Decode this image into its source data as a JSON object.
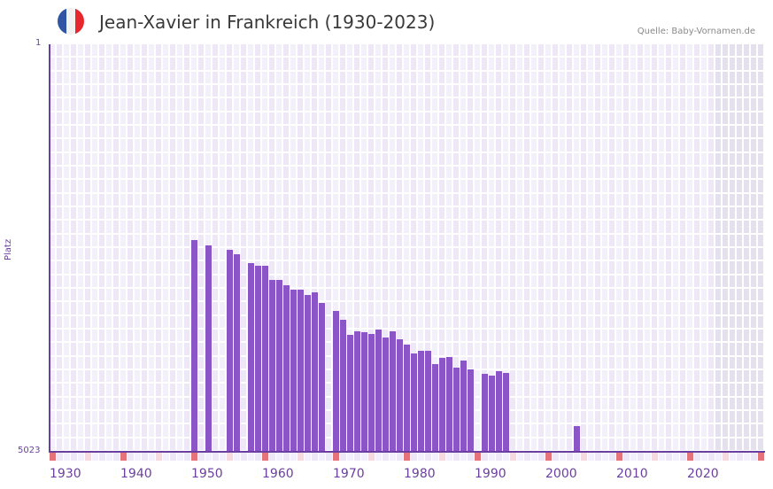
{
  "header": {
    "title": "Jean-Xavier in Frankreich (1930-2023)",
    "source": "Quelle: Baby-Vornamen.de",
    "flag_colors": [
      "#2f55a4",
      "#f2f2f2",
      "#e8262d"
    ]
  },
  "colors": {
    "bar": "#8b55c7",
    "axis": "#6b3fa0",
    "cell_a": "#f3effb",
    "cell_b": "#ede7f8",
    "cell_future": "#e4e0ee",
    "marker_decade": "#e5737a",
    "marker_half": "#f5d9e1"
  },
  "chart_data": {
    "type": "bar",
    "title": "Jean-Xavier in Frankreich (1930-2023)",
    "xlabel": "",
    "ylabel": "Platz",
    "ylim": [
      5023,
      1
    ],
    "y_inverted": true,
    "y_ticks": [
      "1",
      "5023"
    ],
    "x_ticks": [
      "1930",
      "1940",
      "1950",
      "1960",
      "1970",
      "1980",
      "1990",
      "2000",
      "2010",
      "2020"
    ],
    "x_range": [
      1930,
      2030
    ],
    "grid": true,
    "legend": null,
    "categories": [
      1950,
      1952,
      1955,
      1956,
      1958,
      1959,
      1960,
      1961,
      1962,
      1963,
      1964,
      1965,
      1966,
      1967,
      1968,
      1970,
      1971,
      1972,
      1973,
      1974,
      1975,
      1976,
      1977,
      1978,
      1979,
      1980,
      1981,
      1982,
      1983,
      1984,
      1985,
      1986,
      1987,
      1988,
      1989,
      1991,
      1992,
      1993,
      1994,
      2004
    ],
    "values": [
      2414,
      2480,
      2534,
      2589,
      2698,
      2731,
      2731,
      2906,
      2906,
      2971,
      3026,
      3026,
      3092,
      3059,
      3190,
      3289,
      3398,
      3584,
      3540,
      3551,
      3573,
      3518,
      3617,
      3540,
      3639,
      3704,
      3814,
      3781,
      3781,
      3945,
      3868,
      3857,
      3989,
      3901,
      4011,
      4066,
      4088,
      4033,
      4055,
      4711
    ]
  },
  "labels": {
    "y_top": "1",
    "y_bottom": "5023",
    "y_title": "Platz",
    "x": [
      "1930",
      "1940",
      "1950",
      "1960",
      "1970",
      "1980",
      "1990",
      "2000",
      "2010",
      "2020"
    ]
  }
}
